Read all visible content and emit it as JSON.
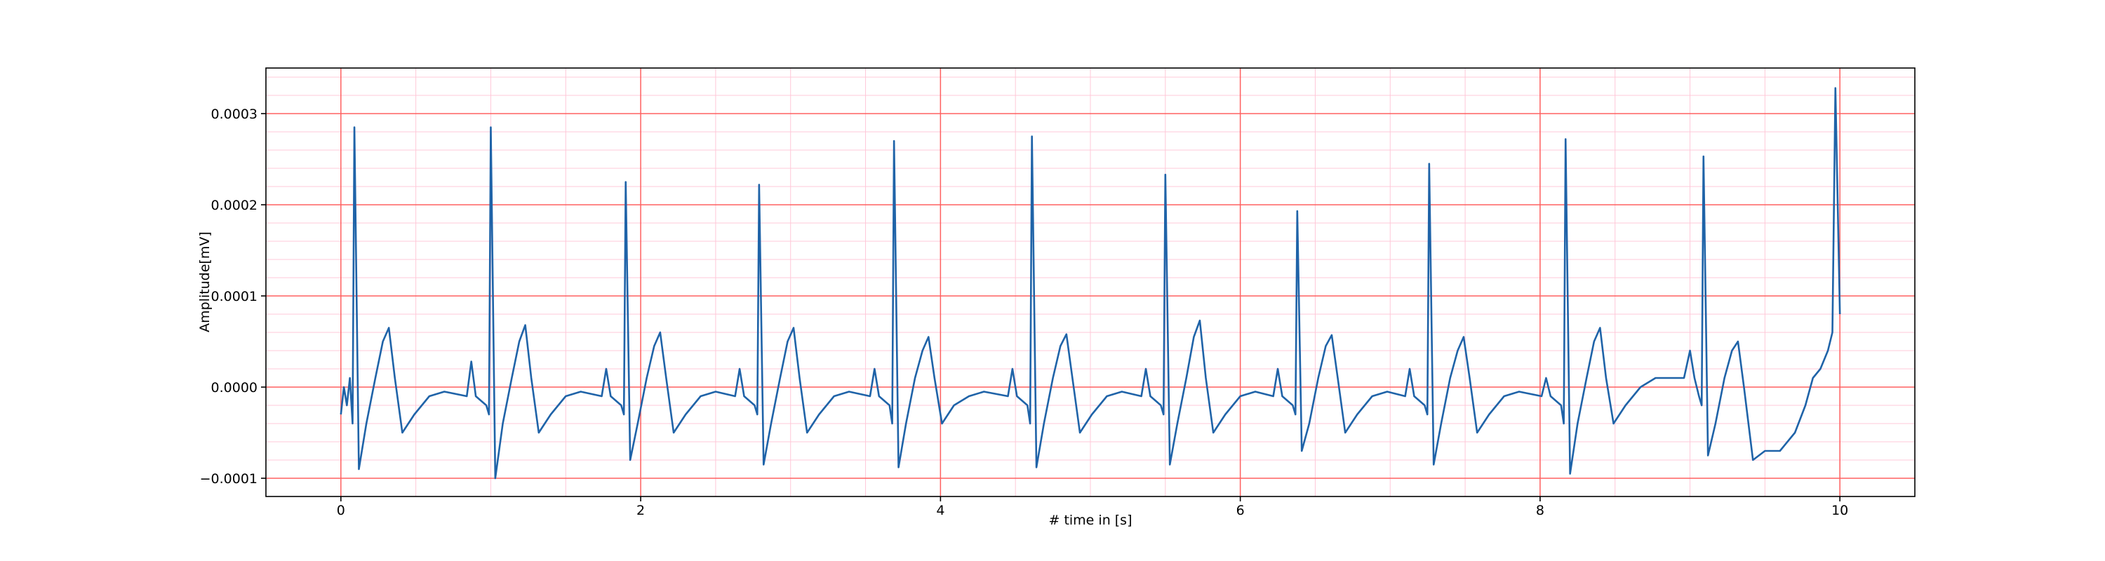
{
  "chart_data": {
    "type": "line",
    "xlabel": "# time in [s]",
    "ylabel": "Amplitude[mV]",
    "xlim": [
      -0.5,
      10.5
    ],
    "ylim": [
      -0.00012,
      0.00035
    ],
    "xticks": [
      0,
      2,
      4,
      6,
      8,
      10
    ],
    "yticks": [
      {
        "value": -0.0001,
        "label": "−0.0001"
      },
      {
        "value": 0,
        "label": "0.0000"
      },
      0.0001,
      0.0002,
      0.0003
    ],
    "grid": true,
    "minor_grid": true,
    "series": [
      {
        "color": "#1f63a8",
        "x": [
          0,
          0.02,
          0.04,
          0.06,
          0.078,
          0.09,
          0.12,
          0.17,
          0.23,
          0.28,
          0.32,
          0.36,
          0.41,
          0.49,
          0.59,
          0.69,
          0.84,
          0.87,
          0.9,
          0.97,
          0.988,
          1.0,
          1.03,
          1.08,
          1.14,
          1.19,
          1.23,
          1.27,
          1.32,
          1.4,
          1.5,
          1.6,
          1.74,
          1.77,
          1.8,
          1.87,
          1.888,
          1.9,
          1.93,
          1.98,
          2.04,
          2.09,
          2.13,
          2.17,
          2.22,
          2.3,
          2.4,
          2.5,
          2.63,
          2.66,
          2.69,
          2.76,
          2.778,
          2.79,
          2.82,
          2.87,
          2.93,
          2.98,
          3.02,
          3.06,
          3.11,
          3.19,
          3.29,
          3.39,
          3.53,
          3.56,
          3.59,
          3.66,
          3.678,
          3.69,
          3.72,
          3.77,
          3.83,
          3.88,
          3.92,
          3.96,
          4.01,
          4.09,
          4.19,
          4.29,
          4.45,
          4.48,
          4.51,
          4.58,
          4.598,
          4.61,
          4.64,
          4.69,
          4.75,
          4.8,
          4.84,
          4.88,
          4.93,
          5.01,
          5.11,
          5.21,
          5.34,
          5.37,
          5.4,
          5.47,
          5.488,
          5.5,
          5.53,
          5.58,
          5.64,
          5.69,
          5.73,
          5.77,
          5.82,
          5.9,
          6.0,
          6.1,
          6.22,
          6.25,
          6.28,
          6.35,
          6.368,
          6.38,
          6.41,
          6.46,
          6.52,
          6.57,
          6.61,
          6.65,
          6.7,
          6.78,
          6.88,
          6.98,
          7.1,
          7.13,
          7.16,
          7.23,
          7.248,
          7.26,
          7.29,
          7.34,
          7.4,
          7.45,
          7.49,
          7.53,
          7.58,
          7.66,
          7.76,
          7.86,
          8.01,
          8.04,
          8.07,
          8.14,
          8.158,
          8.17,
          8.2,
          8.25,
          8.31,
          8.36,
          8.4,
          8.44,
          8.49,
          8.57,
          8.67,
          8.77,
          8.87,
          8.96,
          9.0,
          9.03,
          9.06,
          9.078,
          9.09,
          9.12,
          9.17,
          9.23,
          9.28,
          9.32,
          9.36,
          9.42,
          9.5,
          9.6,
          9.7,
          9.77,
          9.82,
          9.87,
          9.92,
          9.95,
          9.97,
          10.0
        ],
        "values": [
          -3e-05,
          0.0,
          -2e-05,
          1e-05,
          -4e-05,
          0.000285,
          -9e-05,
          -4e-05,
          1e-05,
          5e-05,
          6.5e-05,
          1e-05,
          -5e-05,
          -3e-05,
          -1e-05,
          -5e-06,
          -1e-05,
          2.8e-05,
          -1e-05,
          -2e-05,
          -3e-05,
          0.000285,
          -0.0001,
          -4e-05,
          1e-05,
          5e-05,
          6.8e-05,
          1e-05,
          -5e-05,
          -3e-05,
          -1e-05,
          -5e-06,
          -1e-05,
          2e-05,
          -1e-05,
          -2e-05,
          -3e-05,
          0.000225,
          -8e-05,
          -4e-05,
          1e-05,
          4.5e-05,
          6e-05,
          1e-05,
          -5e-05,
          -3e-05,
          -1e-05,
          -5e-06,
          -1e-05,
          2e-05,
          -1e-05,
          -2e-05,
          -3e-05,
          0.000222,
          -8.5e-05,
          -4e-05,
          1e-05,
          5e-05,
          6.5e-05,
          1e-05,
          -5e-05,
          -3e-05,
          -1e-05,
          -5e-06,
          -1e-05,
          2e-05,
          -1e-05,
          -2e-05,
          -4e-05,
          0.00027,
          -8.8e-05,
          -4e-05,
          1e-05,
          4e-05,
          5.5e-05,
          1e-05,
          -4e-05,
          -2e-05,
          -1e-05,
          -5e-06,
          -1e-05,
          2e-05,
          -1e-05,
          -2e-05,
          -4e-05,
          0.000275,
          -8.8e-05,
          -4e-05,
          1e-05,
          4.5e-05,
          5.8e-05,
          1e-05,
          -5e-05,
          -3e-05,
          -1e-05,
          -5e-06,
          -1e-05,
          2e-05,
          -1e-05,
          -2e-05,
          -3e-05,
          0.000233,
          -8.5e-05,
          -4e-05,
          1e-05,
          5.5e-05,
          7.3e-05,
          1e-05,
          -5e-05,
          -3e-05,
          -1e-05,
          -5e-06,
          -1e-05,
          2e-05,
          -1e-05,
          -2e-05,
          -3e-05,
          0.000193,
          -7e-05,
          -4e-05,
          1e-05,
          4.5e-05,
          5.7e-05,
          1e-05,
          -5e-05,
          -3e-05,
          -1e-05,
          -5e-06,
          -1e-05,
          2e-05,
          -1e-05,
          -2e-05,
          -3e-05,
          0.000245,
          -8.5e-05,
          -4e-05,
          1e-05,
          4e-05,
          5.5e-05,
          1e-05,
          -5e-05,
          -3e-05,
          -1e-05,
          -5e-06,
          -1e-05,
          1e-05,
          -1e-05,
          -2e-05,
          -4e-05,
          0.000272,
          -9.5e-05,
          -4e-05,
          1e-05,
          5e-05,
          6.5e-05,
          1e-05,
          -4e-05,
          -2e-05,
          0.0,
          1e-05,
          1e-05,
          1e-05,
          4e-05,
          1e-05,
          -1e-05,
          -2e-05,
          0.000253,
          -7.5e-05,
          -4e-05,
          1e-05,
          4e-05,
          5e-05,
          0.0,
          -8e-05,
          -7e-05,
          -7e-05,
          -5e-05,
          -2e-05,
          1e-05,
          2e-05,
          4e-05,
          6e-05,
          0.000328,
          8e-05
        ]
      }
    ]
  }
}
